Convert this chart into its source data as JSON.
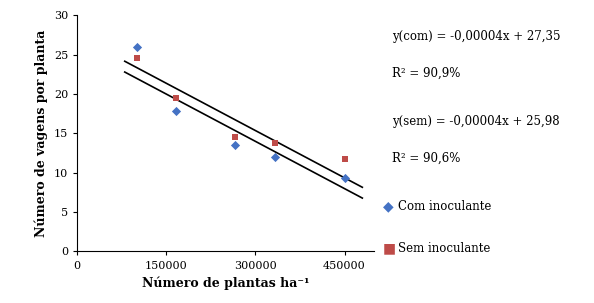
{
  "com_x": [
    100000,
    166000,
    266000,
    333000,
    450000
  ],
  "com_y": [
    26.0,
    17.8,
    13.5,
    12.0,
    9.3
  ],
  "sem_x": [
    100000,
    166000,
    266000,
    333000,
    450000
  ],
  "sem_y": [
    24.5,
    19.5,
    14.5,
    13.8,
    11.8
  ],
  "line_com_slope": -4e-05,
  "line_com_intercept": 27.35,
  "line_sem_slope": -4e-05,
  "line_sem_intercept": 25.98,
  "com_color": "#4472C4",
  "sem_color": "#BE4B48",
  "line_color": "#000000",
  "xlabel": "Número de plantas ha⁻¹",
  "ylabel": "Número de vagens por planta",
  "xlim": [
    0,
    500000
  ],
  "ylim": [
    0,
    30
  ],
  "xticks": [
    0,
    150000,
    300000,
    450000
  ],
  "yticks": [
    0,
    5,
    10,
    15,
    20,
    25,
    30
  ],
  "eq_com": "y(com) = -0,00004x + 27,35",
  "r2_com": "R² = 90,9%",
  "eq_sem": "y(sem) = -0,00004x + 25,98",
  "r2_sem": "R² = 90,6%",
  "legend_com": "Com inoculante",
  "legend_sem": "Sem inoculante",
  "fontsize_labels": 9,
  "fontsize_ticks": 8,
  "fontsize_annot": 8.5,
  "background_color": "#ffffff",
  "line_x_start": 80000,
  "line_x_end": 480000
}
